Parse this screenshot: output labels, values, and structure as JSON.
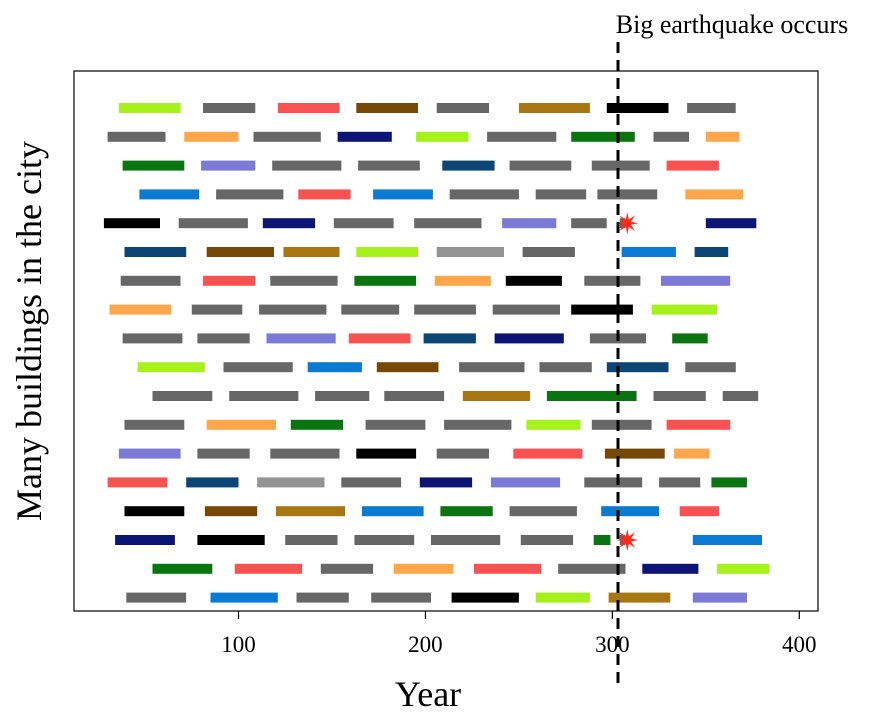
{
  "chart_data": {
    "type": "timeline",
    "title": "",
    "xlabel": "Year",
    "ylabel": "Many buildings in the city",
    "xlim": [
      12,
      410
    ],
    "xticks": [
      100,
      200,
      300,
      400
    ],
    "grid": false,
    "annotation": {
      "label": "Big earthquake occurs",
      "x": 303
    },
    "colors": {
      "lime": "#a6f01c",
      "grey": "#676767",
      "red": "#fa5252",
      "brown": "#774705",
      "ochre": "#a87711",
      "black": "#000000",
      "orange": "#fda64b",
      "navy": "#0c1474",
      "green": "#0a7410",
      "lavender": "#7b7bd7",
      "blue": "#0b7ad2",
      "darkblue": "#0c4675",
      "lightgrey": "#939393",
      "star": "#ff2a1c"
    },
    "rows": [
      [
        [
          36,
          69,
          "lime"
        ],
        [
          81,
          109,
          "grey"
        ],
        [
          121,
          154,
          "red"
        ],
        [
          163,
          196,
          "brown"
        ],
        [
          206,
          234,
          "grey"
        ],
        [
          250,
          288,
          "ochre"
        ],
        [
          297,
          330,
          "black"
        ],
        [
          340,
          366,
          "grey"
        ]
      ],
      [
        [
          30,
          61,
          "grey"
        ],
        [
          71,
          100,
          "orange"
        ],
        [
          108,
          144,
          "grey"
        ],
        [
          153,
          182,
          "navy"
        ],
        [
          195,
          223,
          "lime"
        ],
        [
          233,
          270,
          "grey"
        ],
        [
          278,
          312,
          "green"
        ],
        [
          322,
          341,
          "grey"
        ],
        [
          350,
          368,
          "orange"
        ]
      ],
      [
        [
          38,
          71,
          "green"
        ],
        [
          80,
          109,
          "lavender"
        ],
        [
          118,
          155,
          "grey"
        ],
        [
          164,
          197,
          "grey"
        ],
        [
          209,
          237,
          "darkblue"
        ],
        [
          245,
          278,
          "grey"
        ],
        [
          289,
          320,
          "grey"
        ],
        [
          329,
          357,
          "red"
        ]
      ],
      [
        [
          47,
          79,
          "blue"
        ],
        [
          88,
          124,
          "grey"
        ],
        [
          132,
          160,
          "red"
        ],
        [
          172,
          204,
          "blue"
        ],
        [
          213,
          250,
          "grey"
        ],
        [
          259,
          286,
          "grey"
        ],
        [
          292,
          324,
          "grey"
        ],
        [
          339,
          370,
          "orange"
        ]
      ],
      [
        [
          28,
          58,
          "black"
        ],
        [
          68,
          105,
          "grey"
        ],
        [
          113,
          141,
          "navy"
        ],
        [
          151,
          183,
          "grey"
        ],
        [
          194,
          230,
          "grey"
        ],
        [
          241,
          270,
          "lavender"
        ],
        [
          278,
          297,
          "grey"
        ],
        [
          304,
          307,
          "grey"
        ],
        [
          350,
          377,
          "navy"
        ]
      ],
      [
        [
          39,
          72,
          "darkblue"
        ],
        [
          83,
          119,
          "brown"
        ],
        [
          124,
          154,
          "ochre"
        ],
        [
          163,
          196,
          "lime"
        ],
        [
          206,
          242,
          "lightgrey"
        ],
        [
          252,
          280,
          "grey"
        ],
        [
          305,
          334,
          "blue"
        ],
        [
          344,
          362,
          "darkblue"
        ]
      ],
      [
        [
          37,
          69,
          "grey"
        ],
        [
          81,
          109,
          "red"
        ],
        [
          117,
          153,
          "grey"
        ],
        [
          162,
          195,
          "green"
        ],
        [
          205,
          235,
          "orange"
        ],
        [
          243,
          273,
          "black"
        ],
        [
          285,
          315,
          "grey"
        ],
        [
          326,
          363,
          "lavender"
        ]
      ],
      [
        [
          31,
          64,
          "orange"
        ],
        [
          75,
          102,
          "grey"
        ],
        [
          111,
          147,
          "grey"
        ],
        [
          155,
          186,
          "grey"
        ],
        [
          194,
          227,
          "grey"
        ],
        [
          236,
          272,
          "grey"
        ],
        [
          278,
          311,
          "black"
        ],
        [
          321,
          356,
          "lime"
        ]
      ],
      [
        [
          38,
          70,
          "grey"
        ],
        [
          78,
          106,
          "grey"
        ],
        [
          115,
          152,
          "lavender"
        ],
        [
          159,
          192,
          "red"
        ],
        [
          199,
          227,
          "darkblue"
        ],
        [
          237,
          274,
          "navy"
        ],
        [
          288,
          318,
          "grey"
        ],
        [
          332,
          351,
          "green"
        ]
      ],
      [
        [
          46,
          82,
          "lime"
        ],
        [
          92,
          129,
          "grey"
        ],
        [
          137,
          166,
          "blue"
        ],
        [
          174,
          207,
          "brown"
        ],
        [
          218,
          253,
          "grey"
        ],
        [
          261,
          289,
          "grey"
        ],
        [
          297,
          330,
          "darkblue"
        ],
        [
          339,
          366,
          "grey"
        ]
      ],
      [
        [
          54,
          86,
          "grey"
        ],
        [
          95,
          132,
          "grey"
        ],
        [
          141,
          170,
          "grey"
        ],
        [
          178,
          210,
          "grey"
        ],
        [
          220,
          256,
          "ochre"
        ],
        [
          265,
          313,
          "green"
        ],
        [
          322,
          350,
          "grey"
        ],
        [
          359,
          378,
          "grey"
        ]
      ],
      [
        [
          39,
          71,
          "grey"
        ],
        [
          83,
          120,
          "orange"
        ],
        [
          128,
          156,
          "green"
        ],
        [
          168,
          200,
          "grey"
        ],
        [
          210,
          246,
          "grey"
        ],
        [
          254,
          283,
          "lime"
        ],
        [
          289,
          321,
          "grey"
        ],
        [
          329,
          363,
          "red"
        ]
      ],
      [
        [
          36,
          69,
          "lavender"
        ],
        [
          78,
          106,
          "grey"
        ],
        [
          117,
          154,
          "grey"
        ],
        [
          163,
          195,
          "black"
        ],
        [
          206,
          234,
          "grey"
        ],
        [
          247,
          284,
          "red"
        ],
        [
          296,
          328,
          "brown"
        ],
        [
          333,
          352,
          "orange"
        ]
      ],
      [
        [
          30,
          62,
          "red"
        ],
        [
          72,
          100,
          "darkblue"
        ],
        [
          110,
          146,
          "lightgrey"
        ],
        [
          155,
          187,
          "grey"
        ],
        [
          197,
          225,
          "navy"
        ],
        [
          235,
          272,
          "lavender"
        ],
        [
          285,
          316,
          "grey"
        ],
        [
          325,
          347,
          "grey"
        ],
        [
          353,
          372,
          "green"
        ]
      ],
      [
        [
          39,
          71,
          "black"
        ],
        [
          82,
          110,
          "brown"
        ],
        [
          120,
          157,
          "ochre"
        ],
        [
          166,
          199,
          "blue"
        ],
        [
          208,
          236,
          "green"
        ],
        [
          245,
          281,
          "grey"
        ],
        [
          294,
          325,
          "blue"
        ],
        [
          336,
          357,
          "red"
        ]
      ],
      [
        [
          34,
          66,
          "navy"
        ],
        [
          78,
          114,
          "black"
        ],
        [
          125,
          153,
          "grey"
        ],
        [
          162,
          194,
          "grey"
        ],
        [
          203,
          240,
          "grey"
        ],
        [
          251,
          279,
          "grey"
        ],
        [
          290,
          299,
          "green"
        ],
        [
          304,
          307,
          "grey"
        ],
        [
          343,
          380,
          "blue"
        ]
      ],
      [
        [
          54,
          86,
          "green"
        ],
        [
          98,
          134,
          "red"
        ],
        [
          144,
          172,
          "grey"
        ],
        [
          183,
          215,
          "orange"
        ],
        [
          226,
          262,
          "red"
        ],
        [
          271,
          307,
          "grey"
        ],
        [
          316,
          346,
          "navy"
        ],
        [
          356,
          384,
          "lime"
        ]
      ],
      [
        [
          40,
          72,
          "grey"
        ],
        [
          85,
          121,
          "blue"
        ],
        [
          131,
          159,
          "grey"
        ],
        [
          171,
          203,
          "grey"
        ],
        [
          214,
          250,
          "black"
        ],
        [
          259,
          288,
          "lime"
        ],
        [
          298,
          331,
          "ochre"
        ],
        [
          343,
          372,
          "lavender"
        ]
      ]
    ],
    "damaged": [
      {
        "row": 4,
        "x": 308
      },
      {
        "row": 15,
        "x": 308
      }
    ]
  }
}
